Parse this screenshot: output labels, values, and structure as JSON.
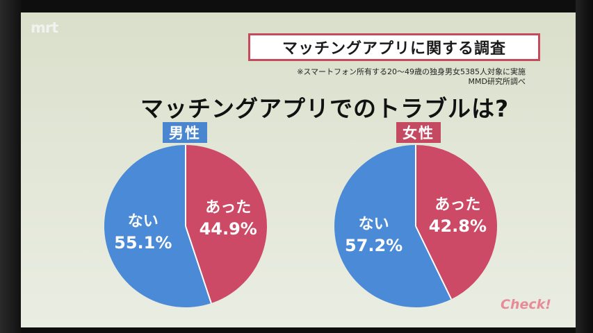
{
  "logo": "mrt",
  "title": "マッチングアプリに関する調査",
  "note": "※スマートフォン所有する20～49歳の独身男女5385人対象に実施",
  "source": "MMD研究所調べ",
  "question": "マッチングアプリでのトラブルは?",
  "check_label": "Check!",
  "colors": {
    "yes": "#cc4a66",
    "no": "#4a8ad6",
    "title_border": "#c44a5c"
  },
  "chart_data": [
    {
      "type": "pie",
      "title": "男性",
      "slices": [
        {
          "label": "あった",
          "value": 44.9,
          "display": "44.9%",
          "color": "#cc4a66"
        },
        {
          "label": "ない",
          "value": 55.1,
          "display": "55.1%",
          "color": "#4a8ad6"
        }
      ]
    },
    {
      "type": "pie",
      "title": "女性",
      "slices": [
        {
          "label": "あった",
          "value": 42.8,
          "display": "42.8%",
          "color": "#cc4a66"
        },
        {
          "label": "ない",
          "value": 57.2,
          "display": "57.2%",
          "color": "#4a8ad6"
        }
      ]
    }
  ]
}
